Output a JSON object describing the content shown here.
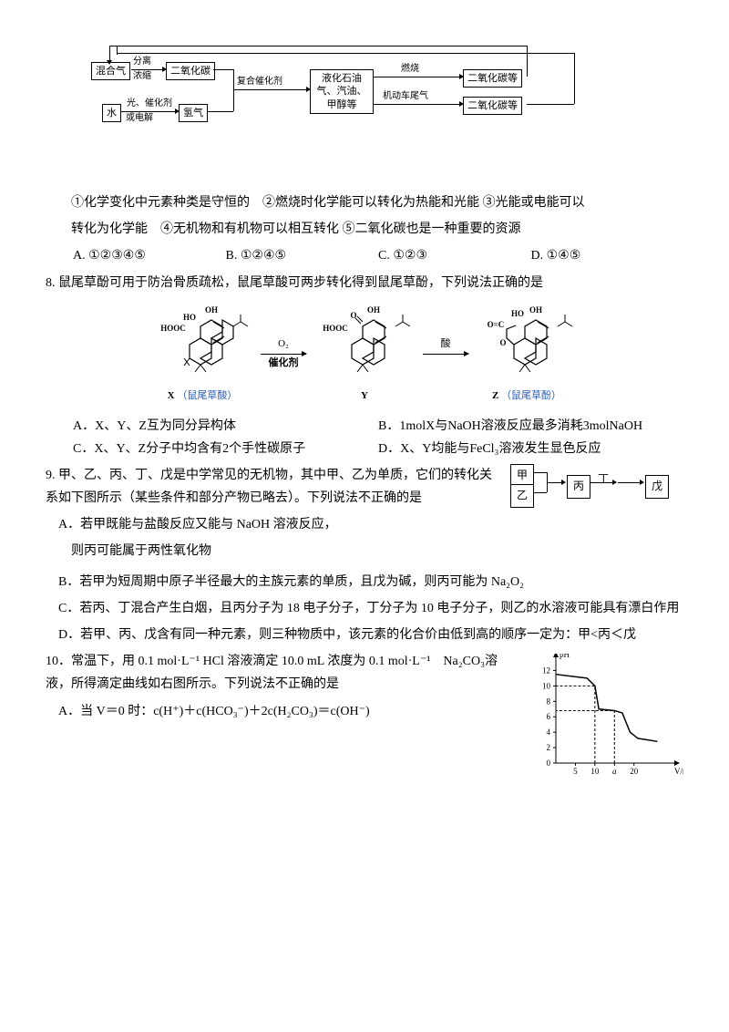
{
  "flow": {
    "b1": "混合气",
    "l1a": "分离",
    "l1b": "浓缩",
    "b2": "二氧化碳",
    "b3": "水",
    "l3a": "光、催化剂",
    "l3b": "或电解",
    "b4": "氢气",
    "lmid": "复合催化剂",
    "b5a": "液化石油",
    "b5b": "气、汽油、",
    "b5c": "甲醇等",
    "l6": "燃烧",
    "b6": "二氧化碳等",
    "l7": "机动车尾气",
    "b7": "二氧化碳等"
  },
  "para1": "①化学变化中元素种类是守恒的　②燃烧时化学能可以转化为热能和光能  ③光能或电能可以",
  "para2": "转化为化学能　④无机物和有机物可以相互转化  ⑤二氧化碳也是一种重要的资源",
  "opts7": {
    "a": "A. ①②③④⑤",
    "b": "B. ①②④⑤",
    "c": "C. ①②③",
    "d": "D. ①④⑤"
  },
  "q8": "8. 鼠尾草酚可用于防治骨质疏松，鼠尾草酸可两步转化得到鼠尾草酚，下列说法正确的是",
  "chem": {
    "x_label": "X",
    "x_hint": "（鼠尾草酸）",
    "y_label": "Y",
    "z_label": "Z",
    "z_hint": "（鼠尾草酚）",
    "arr1_top": "O₂",
    "arr1_bot": "催化剂",
    "arr2_top": "酸"
  },
  "opts8": {
    "a": "A．X、Y、Z互为同分异构体",
    "b": "B．1molX与NaOH溶液反应最多消耗3molNaOH",
    "c": "C．X、Y、Z分子中均含有2个手性碳原子",
    "d": "D．X、Y均能与FeCl₃溶液发生显色反应"
  },
  "q9a": "9. 甲、乙、丙、丁、戊是中学常见的无机物，其中甲、乙为单质，它们的转化关系如下图所示（某些条件和部分产物已略去）。下列说法不正确的是",
  "q9fig": {
    "a": "甲",
    "b": "乙",
    "c": "丙",
    "d": "丁",
    "e": "戊"
  },
  "q9A": "A．若甲既能与盐酸反应又能与 NaOH 溶液反应，",
  "q9A2": "则丙可能属于两性氧化物",
  "q9B": "B．若甲为短周期中原子半径最大的主族元素的单质，且戊为碱，则丙可能为 Na₂O₂",
  "q9C": "C．若丙、丁混合产生白烟，且丙分子为 18 电子分子，丁分子为 10 电子分子，则乙的水溶液可能具有漂白作用",
  "q9D": "D．若甲、丙、戊含有同一种元素，则三种物质中，该元素的化合价由低到高的顺序一定为：甲<丙＜戊",
  "q10": "10．常温下，用 0.1 mol·L⁻¹ HCl 溶液滴定 10.0 mL 浓度为 0.1 mol·L⁻¹　Na₂CO₃溶液，所得滴定曲线如右图所示。下列说法不正确的是",
  "q10A": "A．当 V＝0 时：c(H⁺)＋c(HCO₃⁻)＋2c(H₂CO₃)＝c(OH⁻)",
  "q10chart": {
    "ylabel": "pH",
    "yticks": [
      "0",
      "2",
      "4",
      "6",
      "8",
      "10",
      "12"
    ],
    "xlabel": "V/mL",
    "xticks": [
      "5",
      "10",
      "a",
      "20"
    ],
    "curve": [
      [
        0,
        11.5
      ],
      [
        8,
        11
      ],
      [
        10,
        10
      ],
      [
        11,
        7
      ],
      [
        15,
        6.8
      ],
      [
        17,
        6.5
      ],
      [
        19,
        4
      ],
      [
        21,
        3.2
      ],
      [
        26,
        2.8
      ]
    ],
    "dash1": [
      [
        10,
        0
      ],
      [
        10,
        10
      ],
      [
        0,
        10
      ]
    ],
    "dash2": [
      [
        15,
        0
      ],
      [
        15,
        6.8
      ],
      [
        0,
        6.8
      ]
    ],
    "colors": {
      "axis": "#000",
      "curve": "#000",
      "dash": "#000"
    },
    "xlim": [
      0,
      28
    ],
    "ylim": [
      0,
      13
    ]
  }
}
